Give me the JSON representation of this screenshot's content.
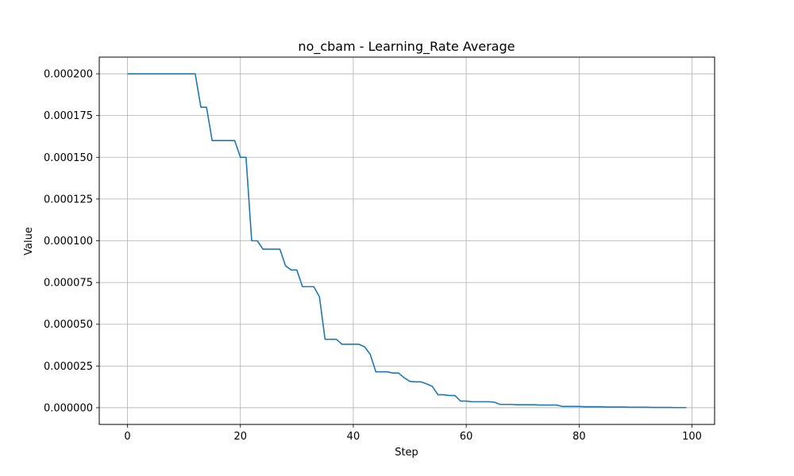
{
  "chart_data": {
    "type": "line",
    "title": "no_cbam - Learning_Rate Average",
    "xlabel": "Step",
    "ylabel": "Value",
    "xlim": [
      -5,
      104
    ],
    "ylim": [
      -1e-05,
      0.00021
    ],
    "grid": true,
    "x_ticks": [
      0,
      20,
      40,
      60,
      80,
      100
    ],
    "x_tick_labels": [
      "0",
      "20",
      "40",
      "60",
      "80",
      "100"
    ],
    "y_ticks": [
      0,
      2.5e-05,
      5e-05,
      7.5e-05,
      0.0001,
      0.000125,
      0.00015,
      0.000175,
      0.0002
    ],
    "y_tick_labels": [
      "0.000000",
      "0.000025",
      "0.000050",
      "0.000075",
      "0.000100",
      "0.000125",
      "0.000150",
      "0.000175",
      "0.000200"
    ],
    "line_color": "#1f77b4",
    "series": [
      {
        "x": [
          0,
          1,
          2,
          3,
          4,
          5,
          6,
          7,
          8,
          9,
          10,
          11,
          12,
          13,
          14,
          15,
          16,
          17,
          18,
          19,
          20,
          21,
          22,
          23,
          24,
          25,
          26,
          27,
          28,
          29,
          30,
          31,
          32,
          33,
          34,
          35,
          36,
          37,
          38,
          39,
          40,
          41,
          42,
          43,
          44,
          45,
          46,
          47,
          48,
          49,
          50,
          51,
          52,
          53,
          54,
          55,
          56,
          57,
          58,
          59,
          60,
          61,
          62,
          63,
          64,
          65,
          66,
          67,
          68,
          69,
          70,
          71,
          72,
          73,
          74,
          75,
          76,
          77,
          78,
          79,
          80,
          81,
          82,
          83,
          84,
          85,
          86,
          87,
          88,
          89,
          90,
          91,
          92,
          93,
          94,
          95,
          96,
          97,
          98,
          99
        ],
        "values": [
          0.0002,
          0.0002,
          0.0002,
          0.0002,
          0.0002,
          0.0002,
          0.0002,
          0.0002,
          0.0002,
          0.0002,
          0.0002,
          0.0002,
          0.0002,
          0.00018,
          0.00018,
          0.00016,
          0.00016,
          0.00016,
          0.00016,
          0.00016,
          0.00015,
          0.00015,
          0.0001,
          0.0001,
          9.5e-05,
          9.5e-05,
          9.5e-05,
          9.5e-05,
          8.5e-05,
          8.25e-05,
          8.25e-05,
          7.25e-05,
          7.25e-05,
          7.25e-05,
          6.65e-05,
          4.1e-05,
          4.1e-05,
          4.1e-05,
          3.8e-05,
          3.8e-05,
          3.8e-05,
          3.8e-05,
          3.65e-05,
          3.2e-05,
          2.15e-05,
          2.15e-05,
          2.15e-05,
          2.08e-05,
          2.08e-05,
          1.8e-05,
          1.58e-05,
          1.55e-05,
          1.55e-05,
          1.43e-05,
          1.28e-05,
          7.8e-06,
          7.8e-06,
          7.3e-06,
          7.3e-06,
          4e-06,
          4e-06,
          3.6e-06,
          3.6e-06,
          3.6e-06,
          3.6e-06,
          3.3e-06,
          2e-06,
          2e-06,
          2e-06,
          1.8e-06,
          1.8e-06,
          1.8e-06,
          1.8e-06,
          1.6e-06,
          1.6e-06,
          1.6e-06,
          1.6e-06,
          8e-07,
          8e-07,
          8e-07,
          8e-07,
          6e-07,
          6e-07,
          6e-07,
          6e-07,
          4e-07,
          4e-07,
          4e-07,
          4e-07,
          3e-07,
          3e-07,
          3e-07,
          3e-07,
          2e-07,
          2e-07,
          2e-07,
          2e-07,
          1e-07,
          1e-07,
          1e-07
        ]
      }
    ]
  }
}
